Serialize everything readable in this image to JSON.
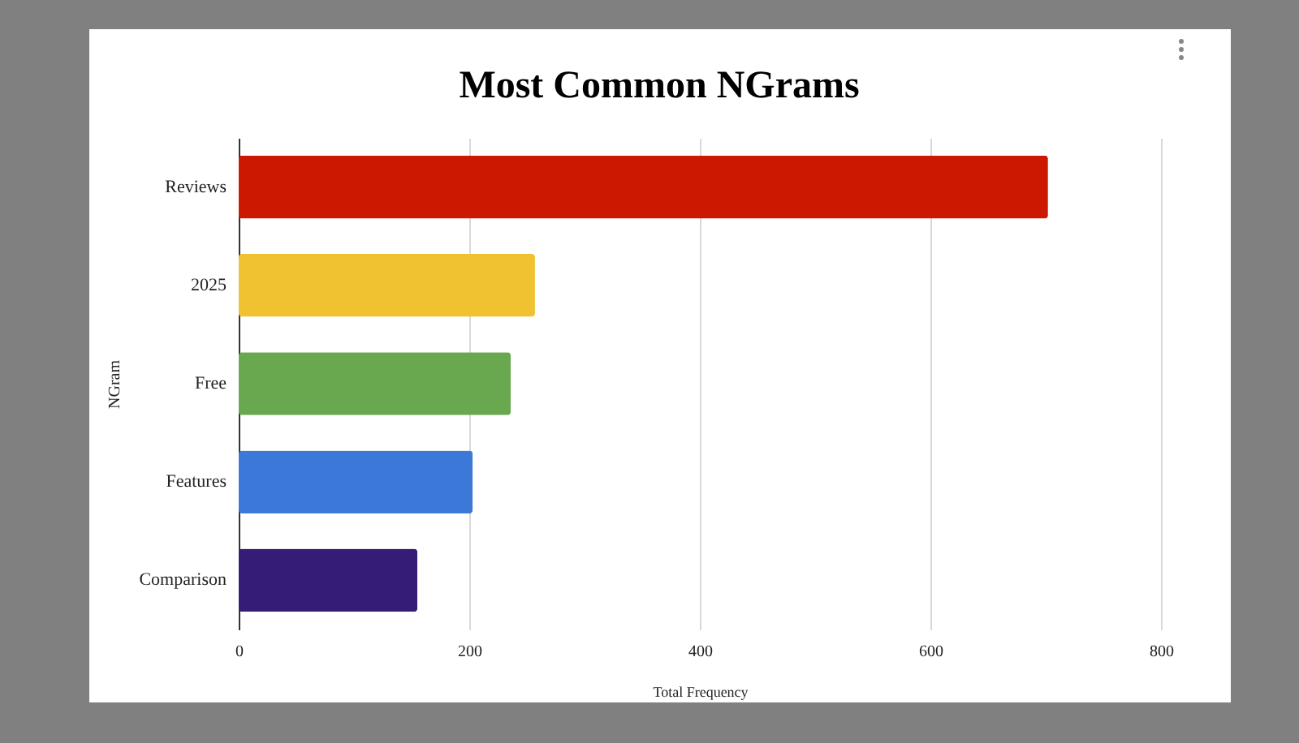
{
  "chart_data": {
    "type": "bar",
    "orientation": "horizontal",
    "title": "Most Common NGrams",
    "xlabel": "Total Frequency",
    "ylabel": "NGram",
    "categories": [
      "Reviews",
      "2025",
      "Free",
      "Features",
      "Comparison"
    ],
    "values": [
      702,
      257,
      236,
      203,
      155
    ],
    "colors": [
      "#cc1800",
      "#f0c232",
      "#6aa84f",
      "#3c78d8",
      "#351c75"
    ],
    "xlim": [
      0,
      800
    ],
    "xticks": [
      0,
      200,
      400,
      600,
      800
    ],
    "grid": "x",
    "legend": false
  }
}
